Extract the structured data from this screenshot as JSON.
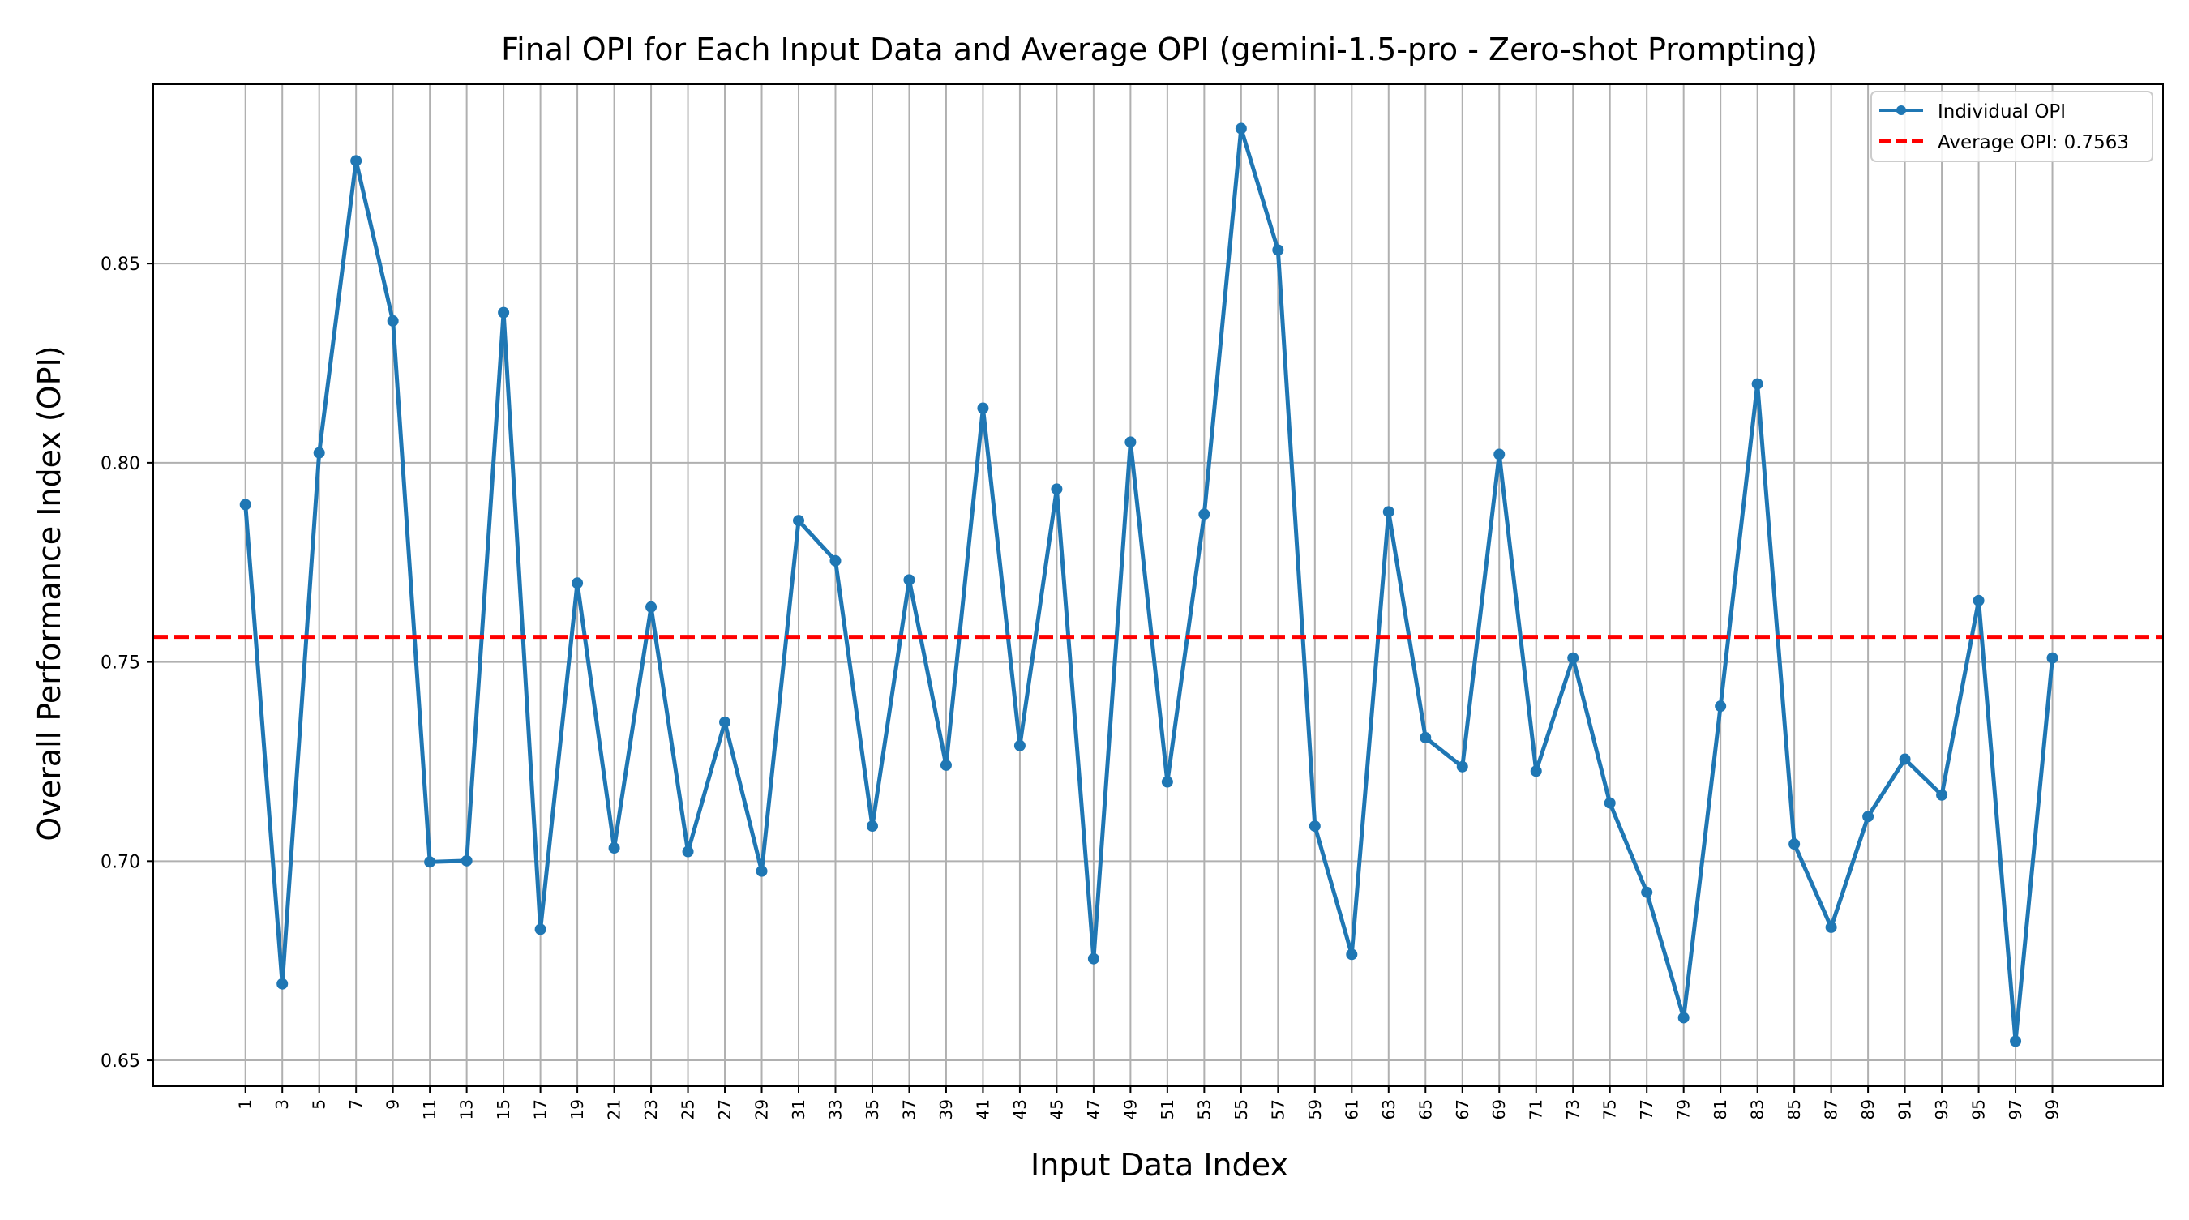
{
  "chart_data": {
    "type": "line",
    "title": "Final OPI for Each Input Data and Average OPI (gemini-1.5-pro - Zero-shot Prompting)",
    "xlabel": "Input Data Index",
    "ylabel": "Overall Performance Index (OPI)",
    "x": [
      1,
      3,
      5,
      7,
      9,
      11,
      13,
      15,
      17,
      19,
      21,
      23,
      25,
      27,
      29,
      31,
      33,
      35,
      37,
      39,
      41,
      43,
      45,
      47,
      49,
      51,
      53,
      55,
      57,
      59,
      61,
      63,
      65,
      67,
      69,
      71,
      73,
      75,
      77,
      79,
      81,
      83,
      85,
      87,
      89,
      91,
      93,
      95,
      97,
      99
    ],
    "yticks": [
      "0.65",
      "0.70",
      "0.75",
      "0.80",
      "0.85"
    ],
    "ytick_values": [
      0.65,
      0.7,
      0.75,
      0.8,
      0.85
    ],
    "xlim": [
      -4,
      105
    ],
    "ylim": [
      0.6435,
      0.895
    ],
    "grid": true,
    "legend_position": "upper right",
    "series": [
      {
        "name": "Individual OPI",
        "color": "#1f77b4",
        "style": "solid-with-markers",
        "values": [
          0.7895,
          0.6692,
          0.8025,
          0.8758,
          0.8356,
          0.6998,
          0.7001,
          0.8377,
          0.6829,
          0.7698,
          0.7033,
          0.7638,
          0.7024,
          0.7349,
          0.6975,
          0.7855,
          0.7754,
          0.7088,
          0.7706,
          0.7241,
          0.8137,
          0.729,
          0.7934,
          0.6755,
          0.8052,
          0.7199,
          0.7871,
          0.8839,
          0.8534,
          0.7088,
          0.6766,
          0.7877,
          0.731,
          0.7237,
          0.8021,
          0.7226,
          0.751,
          0.7146,
          0.6922,
          0.6607,
          0.7389,
          0.8198,
          0.7043,
          0.6834,
          0.7112,
          0.7256,
          0.7166,
          0.7654,
          0.6548,
          0.751
        ]
      }
    ],
    "average": {
      "name": "Average OPI: 0.7563",
      "value": 0.7563,
      "color": "#ff0000",
      "style": "dashed"
    }
  }
}
